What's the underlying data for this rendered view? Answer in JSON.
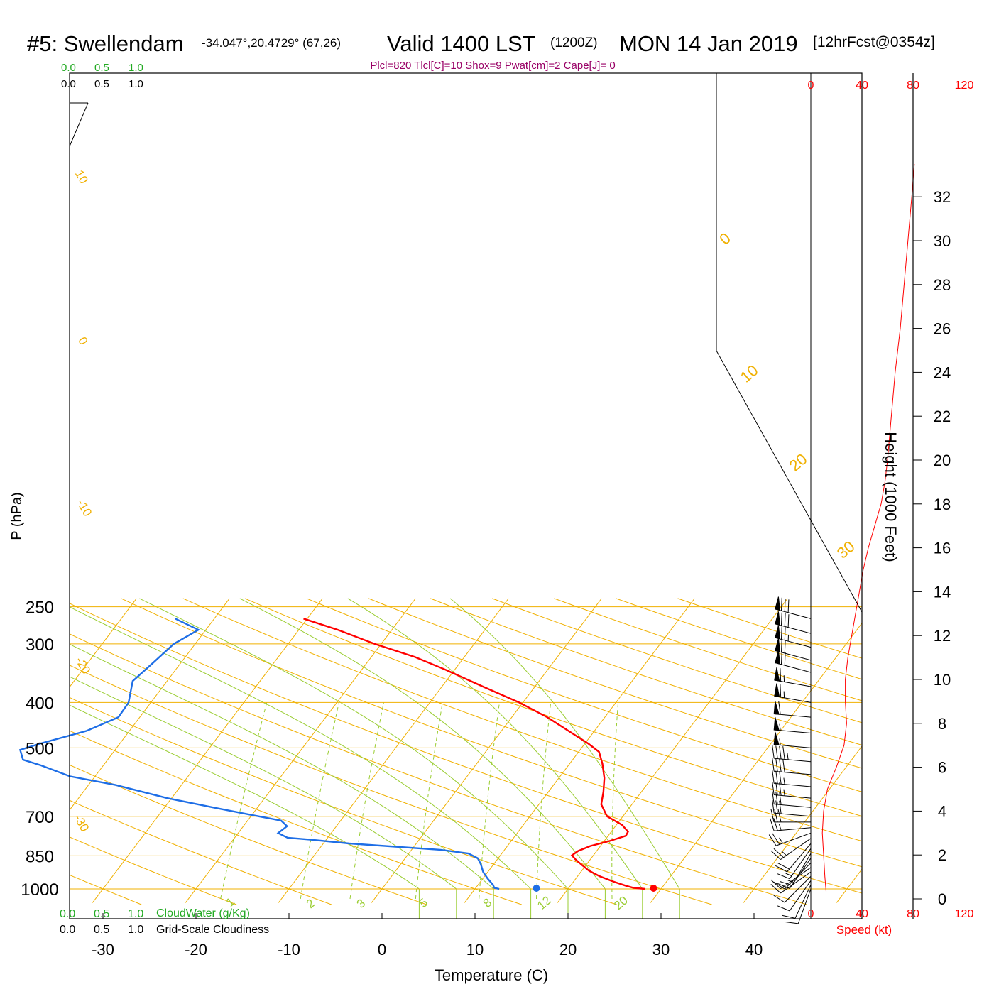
{
  "header": {
    "station": "#5: Swellendam",
    "coords": "-34.047°,20.4729° (67,26)",
    "valid": "Valid 1400 LST",
    "utc": "(1200Z)",
    "date": "MON 14 Jan 2019",
    "forecast": "[12hrFcst@0354z]",
    "indices": "Plcl=820 Tlcl[C]=10 Shox=9 Pwat[cm]=2 Cape[J]= 0"
  },
  "colors": {
    "temperature": "#ff0000",
    "dewpoint": "#1e6ee6",
    "isotherm_isobar": "#f0b000",
    "dry_adiabat": "#f0b000",
    "moist_adiabat": "#9acd32",
    "mixing_ratio": "#9acd32",
    "cloud_scale": "#22aa22",
    "speed": "#ff0000",
    "indices": "#990066"
  },
  "chart_data": {
    "type": "skew-t",
    "xlabel": "Temperature (C)",
    "ylabel": "P (hPa)",
    "y2label": "Height (1000 Feet)",
    "x_ticks": [
      -30,
      -20,
      -10,
      0,
      10,
      20,
      30,
      40
    ],
    "p_ticks": [
      250,
      300,
      400,
      500,
      700,
      850,
      1000
    ],
    "height_ticks": [
      0,
      2,
      4,
      6,
      8,
      10,
      12,
      14,
      16,
      18,
      20,
      22,
      24,
      26,
      28,
      30,
      32
    ],
    "pressure_range": [
      1000,
      250
    ],
    "temperature_range": [
      -34,
      43
    ],
    "dry_adiabat_labels": [
      "10",
      "0",
      "-10",
      "-20",
      "-30"
    ],
    "adiabat_right_labels": [
      "0",
      "10",
      "20",
      "30"
    ],
    "mixing_ratio_labels": [
      "1",
      "2",
      "3",
      "5",
      "8",
      "12",
      "20"
    ],
    "cloud_scale_top": {
      "water_ticks": [
        "0.0",
        "0.5",
        "1.0"
      ],
      "cloud_ticks": [
        "0.0",
        "0.5",
        "1.0"
      ]
    },
    "cloud_scale_bottom": {
      "water_ticks": [
        "0.0",
        "0.5",
        "1.0"
      ],
      "water_label": "CloudWater (g/Kg)",
      "cloud_ticks": [
        "0.0",
        "0.5",
        "1.0"
      ],
      "cloud_label": "Grid-Scale Cloudiness"
    },
    "speed_axis": {
      "label": "Speed (kt)",
      "ticks": [
        "0",
        "40",
        "80",
        "120"
      ],
      "range": [
        0,
        120
      ]
    },
    "temperature_profile": [
      {
        "p": 1000,
        "t": 28.3
      },
      {
        "p": 995,
        "t": 27.0
      },
      {
        "p": 985,
        "t": 26.0
      },
      {
        "p": 965,
        "t": 24.3
      },
      {
        "p": 940,
        "t": 22.4
      },
      {
        "p": 915,
        "t": 20.8
      },
      {
        "p": 890,
        "t": 19.6
      },
      {
        "p": 865,
        "t": 18.4
      },
      {
        "p": 848,
        "t": 17.7
      },
      {
        "p": 830,
        "t": 18.0
      },
      {
        "p": 810,
        "t": 18.9
      },
      {
        "p": 790,
        "t": 20.6
      },
      {
        "p": 770,
        "t": 21.9
      },
      {
        "p": 755,
        "t": 21.8
      },
      {
        "p": 730,
        "t": 20.6
      },
      {
        "p": 700,
        "t": 18.3
      },
      {
        "p": 660,
        "t": 16.7
      },
      {
        "p": 620,
        "t": 15.9
      },
      {
        "p": 580,
        "t": 14.9
      },
      {
        "p": 540,
        "t": 13.5
      },
      {
        "p": 510,
        "t": 12.2
      },
      {
        "p": 490,
        "t": 10.4
      },
      {
        "p": 460,
        "t": 7.2
      },
      {
        "p": 430,
        "t": 3.8
      },
      {
        "p": 400,
        "t": -0.4
      },
      {
        "p": 370,
        "t": -5.6
      },
      {
        "p": 340,
        "t": -11.1
      },
      {
        "p": 320,
        "t": -15.3
      },
      {
        "p": 300,
        "t": -20.7
      },
      {
        "p": 280,
        "t": -25.8
      },
      {
        "p": 265,
        "t": -30.4
      }
    ],
    "dewpoint_profile": [
      {
        "p": 1000,
        "t": 12.6
      },
      {
        "p": 995,
        "t": 12.0
      },
      {
        "p": 980,
        "t": 11.6
      },
      {
        "p": 950,
        "t": 10.5
      },
      {
        "p": 920,
        "t": 9.5
      },
      {
        "p": 885,
        "t": 8.6
      },
      {
        "p": 860,
        "t": 7.8
      },
      {
        "p": 840,
        "t": 6.4
      },
      {
        "p": 825,
        "t": 3.1
      },
      {
        "p": 800,
        "t": -7.2
      },
      {
        "p": 785,
        "t": -11.7
      },
      {
        "p": 778,
        "t": -14.3
      },
      {
        "p": 760,
        "t": -15.7
      },
      {
        "p": 735,
        "t": -15.3
      },
      {
        "p": 715,
        "t": -16.4
      },
      {
        "p": 695,
        "t": -20.1
      },
      {
        "p": 670,
        "t": -24.8
      },
      {
        "p": 640,
        "t": -30.5
      },
      {
        "p": 600,
        "t": -37.1
      },
      {
        "p": 575,
        "t": -42.7
      },
      {
        "p": 545,
        "t": -46.7
      },
      {
        "p": 530,
        "t": -49.1
      },
      {
        "p": 505,
        "t": -50.2
      },
      {
        "p": 490,
        "t": -48.6
      },
      {
        "p": 460,
        "t": -44.6
      },
      {
        "p": 430,
        "t": -42.3
      },
      {
        "p": 400,
        "t": -42.4
      },
      {
        "p": 360,
        "t": -43.7
      },
      {
        "p": 330,
        "t": -43.0
      },
      {
        "p": 300,
        "t": -42.3
      },
      {
        "p": 280,
        "t": -40.8
      },
      {
        "p": 265,
        "t": -44.2
      }
    ],
    "surface_markers": {
      "temperature": 29.2,
      "dewpoint": 16.6
    },
    "speed_profile": [
      {
        "h": 0.3,
        "s": 12
      },
      {
        "h": 1.0,
        "s": 11
      },
      {
        "h": 2.0,
        "s": 10
      },
      {
        "h": 3.0,
        "s": 9
      },
      {
        "h": 4.0,
        "s": 10
      },
      {
        "h": 5.0,
        "s": 13
      },
      {
        "h": 6.0,
        "s": 20
      },
      {
        "h": 7.0,
        "s": 26
      },
      {
        "h": 8.0,
        "s": 28
      },
      {
        "h": 9.0,
        "s": 27
      },
      {
        "h": 10.0,
        "s": 27
      },
      {
        "h": 11.0,
        "s": 29
      },
      {
        "h": 12.0,
        "s": 32
      },
      {
        "h": 13.0,
        "s": 35
      },
      {
        "h": 14.0,
        "s": 38
      },
      {
        "h": 15.0,
        "s": 41
      },
      {
        "h": 16.0,
        "s": 45
      },
      {
        "h": 17.0,
        "s": 50
      },
      {
        "h": 18.0,
        "s": 55
      },
      {
        "h": 19.0,
        "s": 58
      },
      {
        "h": 20.0,
        "s": 60
      },
      {
        "h": 22.0,
        "s": 63
      },
      {
        "h": 24.0,
        "s": 66
      },
      {
        "h": 26.0,
        "s": 70
      },
      {
        "h": 28.0,
        "s": 73
      },
      {
        "h": 30.0,
        "s": 76
      },
      {
        "h": 32.0,
        "s": 79
      },
      {
        "h": 33.5,
        "s": 81
      }
    ],
    "wind_barbs": [
      {
        "p": 265,
        "dir": 285,
        "kt": 80
      },
      {
        "p": 285,
        "dir": 285,
        "kt": 80
      },
      {
        "p": 305,
        "dir": 285,
        "kt": 75
      },
      {
        "p": 325,
        "dir": 285,
        "kt": 70
      },
      {
        "p": 345,
        "dir": 285,
        "kt": 70
      },
      {
        "p": 370,
        "dir": 280,
        "kt": 65
      },
      {
        "p": 400,
        "dir": 280,
        "kt": 65
      },
      {
        "p": 430,
        "dir": 275,
        "kt": 60
      },
      {
        "p": 465,
        "dir": 275,
        "kt": 55
      },
      {
        "p": 500,
        "dir": 275,
        "kt": 55
      },
      {
        "p": 535,
        "dir": 275,
        "kt": 45
      },
      {
        "p": 570,
        "dir": 275,
        "kt": 40
      },
      {
        "p": 605,
        "dir": 275,
        "kt": 35
      },
      {
        "p": 640,
        "dir": 275,
        "kt": 35
      },
      {
        "p": 670,
        "dir": 275,
        "kt": 30
      },
      {
        "p": 700,
        "dir": 275,
        "kt": 30
      },
      {
        "p": 720,
        "dir": 270,
        "kt": 30
      },
      {
        "p": 740,
        "dir": 265,
        "kt": 25
      },
      {
        "p": 760,
        "dir": 250,
        "kt": 25
      },
      {
        "p": 780,
        "dir": 235,
        "kt": 25
      },
      {
        "p": 800,
        "dir": 220,
        "kt": 20
      },
      {
        "p": 820,
        "dir": 215,
        "kt": 15
      },
      {
        "p": 840,
        "dir": 210,
        "kt": 15
      },
      {
        "p": 860,
        "dir": 215,
        "kt": 10
      },
      {
        "p": 880,
        "dir": 225,
        "kt": 10
      },
      {
        "p": 900,
        "dir": 235,
        "kt": 10
      },
      {
        "p": 920,
        "dir": 235,
        "kt": 10
      },
      {
        "p": 940,
        "dir": 225,
        "kt": 10
      },
      {
        "p": 960,
        "dir": 215,
        "kt": 10
      },
      {
        "p": 980,
        "dir": 205,
        "kt": 10
      },
      {
        "p": 1000,
        "dir": 200,
        "kt": 10
      }
    ]
  }
}
